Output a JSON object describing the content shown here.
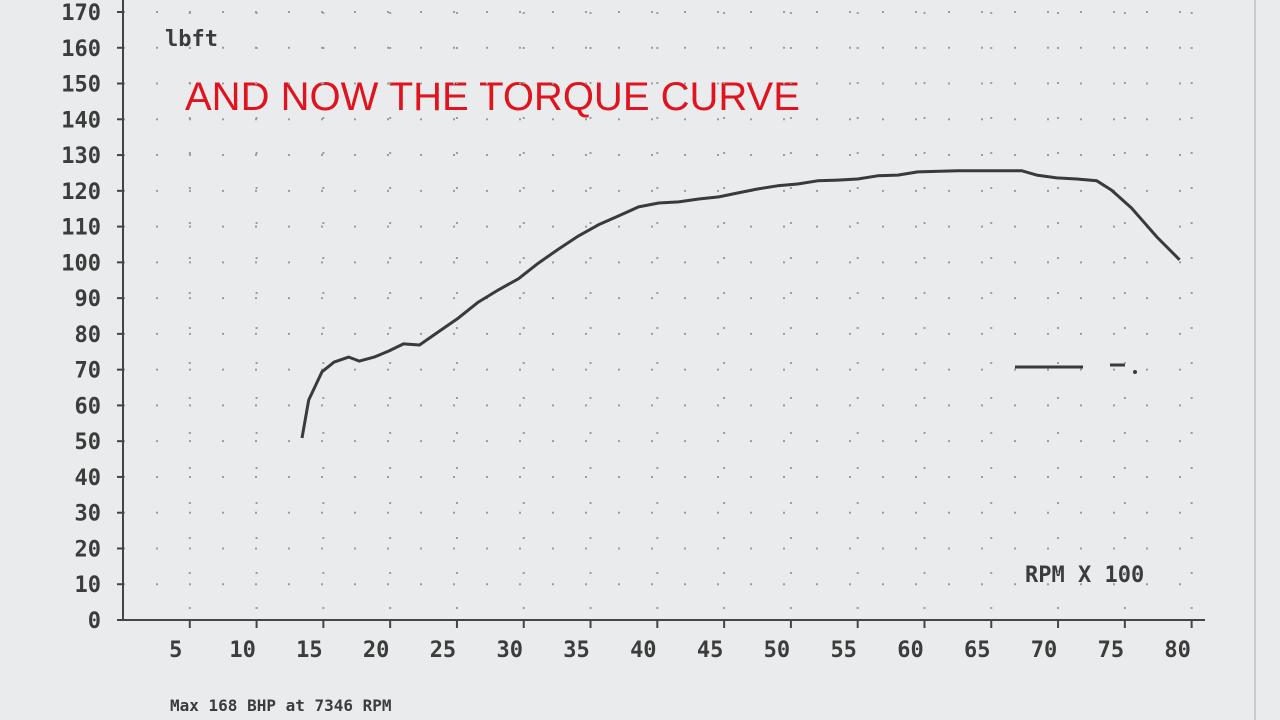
{
  "chart_data": {
    "type": "line",
    "title": "AND NOW THE TORQUE CURVE",
    "y_label": "lbft",
    "x_label": "RPM X 100",
    "footer": "Max 168 BHP at 7346 RPM",
    "x": [
      13.4,
      13.9,
      14.9,
      15.8,
      16.9,
      17.7,
      18.8,
      19.9,
      21.0,
      22.2,
      23.7,
      25.1,
      26.6,
      28.1,
      29.6,
      31.1,
      32.6,
      34.1,
      35.6,
      37.1,
      38.6,
      40.1,
      41.6,
      43.1,
      44.6,
      46.0,
      47.5,
      49.0,
      50.5,
      52.0,
      53.5,
      55.0,
      56.5,
      58.0,
      59.5,
      62.5,
      65.4,
      67.3,
      68.4,
      69.9,
      71.4,
      72.9,
      74.0,
      75.5,
      77.4,
      79.1
    ],
    "series": [
      {
        "color": "#3a3a3a",
        "values": [
          50.9,
          61.5,
          69.4,
          72.1,
          73.5,
          72.4,
          73.5,
          75.2,
          77.2,
          76.9,
          80.8,
          84.4,
          88.9,
          92.3,
          95.4,
          99.8,
          103.7,
          107.4,
          110.5,
          113,
          115.5,
          116.6,
          116.9,
          117.7,
          118.3,
          119.4,
          120.5,
          121.4,
          121.9,
          122.8,
          123,
          123.3,
          124.2,
          124.4,
          125.3,
          125.6,
          125.6,
          125.6,
          124.4,
          123.6,
          123.3,
          122.8,
          120.2,
          115.2,
          107.1,
          100.7
        ]
      }
    ],
    "xlim": [
      0,
      81
    ],
    "xticks": [
      5,
      10,
      15,
      20,
      25,
      30,
      35,
      40,
      45,
      50,
      55,
      60,
      65,
      70,
      75,
      80
    ],
    "ylim": [
      0,
      170
    ],
    "yticks": [
      0,
      10,
      20,
      30,
      40,
      50,
      60,
      70,
      80,
      90,
      100,
      110,
      120,
      130,
      140,
      150,
      160,
      170
    ],
    "grid": true
  }
}
